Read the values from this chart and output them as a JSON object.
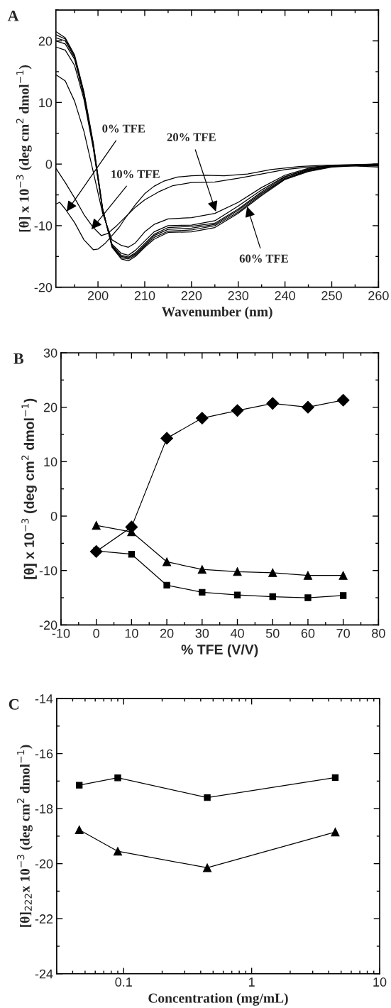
{
  "chart_data": [
    {
      "type": "line",
      "title": "A",
      "xlabel": "Wavenumber (nm)",
      "ylabel": "[θ] x 10$^{−3}$ (deg cm$^{2}$ dmol$^{−1}$)",
      "xlim": [
        191,
        260
      ],
      "xticks": [
        200,
        210,
        220,
        230,
        240,
        250,
        260
      ],
      "ylim": [
        -20,
        25
      ],
      "yticks": [
        -20,
        -10,
        0,
        10,
        20
      ],
      "series": [
        {
          "color": "#000000",
          "x": [
            191,
            191.8,
            193,
            195,
            197,
            199,
            200,
            201.5,
            203,
            204.5,
            206,
            208,
            210,
            212,
            214,
            217,
            220,
            223,
            227,
            232,
            237,
            243,
            248,
            254,
            260
          ],
          "values": [
            -6.5,
            -6.2,
            -7.3,
            -9.5,
            -12.3,
            -13.9,
            -13.8,
            -12.9,
            -11.6,
            -10.3,
            -8.6,
            -6.6,
            -4.8,
            -3.6,
            -2.8,
            -2.1,
            -1.9,
            -1.8,
            -1.9,
            -1.6,
            -0.9,
            -0.4,
            -0.2,
            -0.1,
            0
          ]
        },
        {
          "color": "#000000",
          "x": [
            191,
            193,
            195,
            197,
            199,
            200.7,
            202,
            204,
            206,
            208,
            210,
            213,
            216,
            220,
            225,
            230,
            235,
            240,
            245,
            250,
            255,
            260
          ],
          "values": [
            -0.7,
            -3,
            -5.5,
            -8.2,
            -10.3,
            -11.6,
            -11.3,
            -10,
            -8.5,
            -7,
            -5.8,
            -4.5,
            -3.5,
            -3,
            -2.9,
            -2.3,
            -1.6,
            -0.9,
            -0.5,
            -0.3,
            -0.2,
            -0.3
          ]
        },
        {
          "color": "#000000",
          "x": [
            191,
            193,
            195,
            197,
            199,
            201,
            203,
            205,
            206.5,
            208,
            210,
            212,
            215,
            220,
            225,
            230,
            235,
            240,
            245,
            250,
            255,
            260
          ],
          "values": [
            14.5,
            13.5,
            10.2,
            5.3,
            -1.3,
            -8,
            -12.3,
            -13.2,
            -13.5,
            -12.8,
            -11,
            -9.8,
            -8.9,
            -8.7,
            -8,
            -6.2,
            -3.8,
            -1.8,
            -0.7,
            -0.2,
            -0.1,
            0
          ]
        },
        {
          "color": "#000000",
          "x": [
            191,
            193,
            195,
            197,
            199,
            201,
            203,
            205,
            206.5,
            208,
            210,
            212,
            215,
            220,
            225,
            230,
            235,
            240,
            245,
            250,
            255,
            260
          ],
          "values": [
            19,
            18.5,
            16,
            10.5,
            2.5,
            -7.5,
            -13,
            -14.5,
            -14.8,
            -14,
            -12.5,
            -11,
            -10,
            -9.9,
            -9.2,
            -6.8,
            -4.2,
            -2,
            -0.8,
            -0.3,
            -0.2,
            -0.1
          ]
        },
        {
          "color": "#000000",
          "x": [
            191,
            193,
            195,
            197,
            199,
            201,
            203,
            205,
            206.5,
            208,
            210,
            212,
            215,
            220,
            225,
            230,
            235,
            240,
            245,
            250,
            255,
            260
          ],
          "values": [
            20,
            19.5,
            17,
            11,
            2.8,
            -7.5,
            -13.2,
            -14.8,
            -15.1,
            -14.4,
            -12.9,
            -11.4,
            -10.3,
            -10.1,
            -9.6,
            -7.3,
            -4.5,
            -2.1,
            -0.9,
            -0.3,
            -0.2,
            -0.1
          ]
        },
        {
          "color": "#000000",
          "x": [
            191,
            193,
            195,
            197,
            199,
            201,
            203,
            205,
            206.5,
            208,
            210,
            212,
            215,
            220,
            225,
            230,
            235,
            240,
            245,
            250,
            255,
            260
          ],
          "values": [
            20.5,
            20,
            17.3,
            11.2,
            3,
            -7.4,
            -13.3,
            -15,
            -15.2,
            -14.6,
            -13.1,
            -11.6,
            -10.6,
            -10.4,
            -9.8,
            -7.5,
            -4.7,
            -2.3,
            -1,
            -0.4,
            -0.2,
            -0.2
          ]
        },
        {
          "color": "#000000",
          "x": [
            191,
            193,
            195,
            197,
            199,
            201,
            203,
            205,
            206.5,
            208,
            210,
            212,
            215,
            220,
            225,
            230,
            235,
            240,
            245,
            250,
            255,
            260
          ],
          "values": [
            21,
            20.3,
            17.5,
            11.5,
            3.2,
            -7.3,
            -13.4,
            -15.2,
            -15.4,
            -14.8,
            -13.3,
            -11.9,
            -10.9,
            -10.7,
            -10,
            -7.8,
            -4.9,
            -2.4,
            -1.1,
            -0.4,
            -0.3,
            -0.3
          ]
        },
        {
          "color": "#000000",
          "x": [
            191,
            193,
            195,
            197,
            199,
            201,
            203,
            205,
            206.5,
            208,
            210,
            212,
            215,
            220,
            225,
            230,
            235,
            240,
            245,
            250,
            255,
            260
          ],
          "values": [
            21.5,
            20.5,
            17.7,
            11.7,
            3.4,
            -7.2,
            -13.5,
            -15.4,
            -15.7,
            -15,
            -13.5,
            -12.2,
            -11.1,
            -11,
            -10.3,
            -8,
            -5.1,
            -2.5,
            -1.2,
            -0.5,
            -0.3,
            -0.5
          ]
        }
      ],
      "annotations": [
        {
          "text": "0% TFE",
          "x": 193.3,
          "y": -7.7
        },
        {
          "text": "10% TFE",
          "x": 198.6,
          "y": -10.6
        },
        {
          "text": "20% TFE",
          "x": 225.2,
          "y": -7.7
        },
        {
          "text": "60% TFE",
          "x": 231.9,
          "y": -6.9
        }
      ]
    },
    {
      "type": "line",
      "title": "B",
      "xlabel": "% TFE (V/V)",
      "ylabel": "[θ] x 10$^{−3}$ (deg cm$^{2}$ dmol$^{−1}$)",
      "x": [
        0,
        10,
        20,
        30,
        40,
        50,
        60,
        70
      ],
      "xlim": [
        -10,
        80
      ],
      "xticks": [
        -10,
        0,
        10,
        20,
        30,
        40,
        50,
        60,
        70,
        80
      ],
      "ylim": [
        -20,
        30
      ],
      "yticks": [
        -20,
        -10,
        0,
        10,
        20,
        30
      ],
      "series": [
        {
          "color": "#000000",
          "marker": "diamond",
          "values": [
            -6.5,
            -2,
            14.3,
            18,
            19.4,
            20.7,
            20,
            21.3
          ]
        },
        {
          "color": "#000000",
          "marker": "triangle",
          "values": [
            -1.7,
            -2.9,
            -8.4,
            -9.8,
            -10.2,
            -10.4,
            -10.9,
            -10.9
          ]
        },
        {
          "color": "#000000",
          "marker": "square",
          "values": [
            -6.4,
            -7,
            -12.7,
            -14,
            -14.5,
            -14.8,
            -15,
            -14.6
          ]
        }
      ]
    },
    {
      "type": "line",
      "title": "C",
      "xlabel": "Concentration (mg/mL)",
      "ylabel": "[θ]$_{222}$x 10$^{−3}$ (deg cm$^{2}$ dmol$^{−1}$)",
      "log": "x",
      "x": [
        0.045,
        0.09,
        0.45,
        4.5
      ],
      "xlim": [
        0.03,
        10
      ],
      "xticks": [
        0.1,
        1,
        10
      ],
      "ylim": [
        -24,
        -14
      ],
      "yticks": [
        -24,
        -22,
        -20,
        -18,
        -16,
        -14
      ],
      "series": [
        {
          "color": "#000000",
          "marker": "square",
          "values": [
            -17.15,
            -16.88,
            -17.6,
            -16.87
          ]
        },
        {
          "color": "#000000",
          "marker": "triangle",
          "values": [
            -18.77,
            -19.55,
            -20.15,
            -18.85
          ]
        }
      ]
    }
  ]
}
